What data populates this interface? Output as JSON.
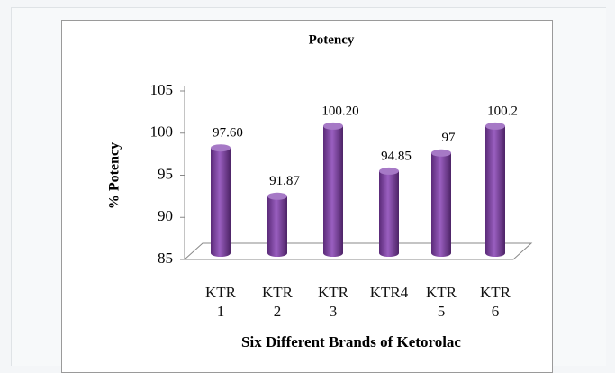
{
  "chart_data": {
    "type": "bar",
    "title": "Potency",
    "x_label": "Six Different Brands of Ketorolac",
    "y_label": "% Potency",
    "categories": [
      "KTR 1",
      "KTR 2",
      "KTR 3",
      "KTR4",
      "KTR 5",
      "KTR 6"
    ],
    "values": [
      97.6,
      91.87,
      100.2,
      94.85,
      97,
      100.2
    ],
    "value_labels": [
      "97.60",
      "91.87",
      "100.20",
      "94.85",
      "97",
      "100.2"
    ],
    "color": "#7b3f9e",
    "ylim": [
      85,
      105
    ],
    "yticks": [
      85,
      90,
      95,
      100,
      105
    ],
    "grid": false
  }
}
